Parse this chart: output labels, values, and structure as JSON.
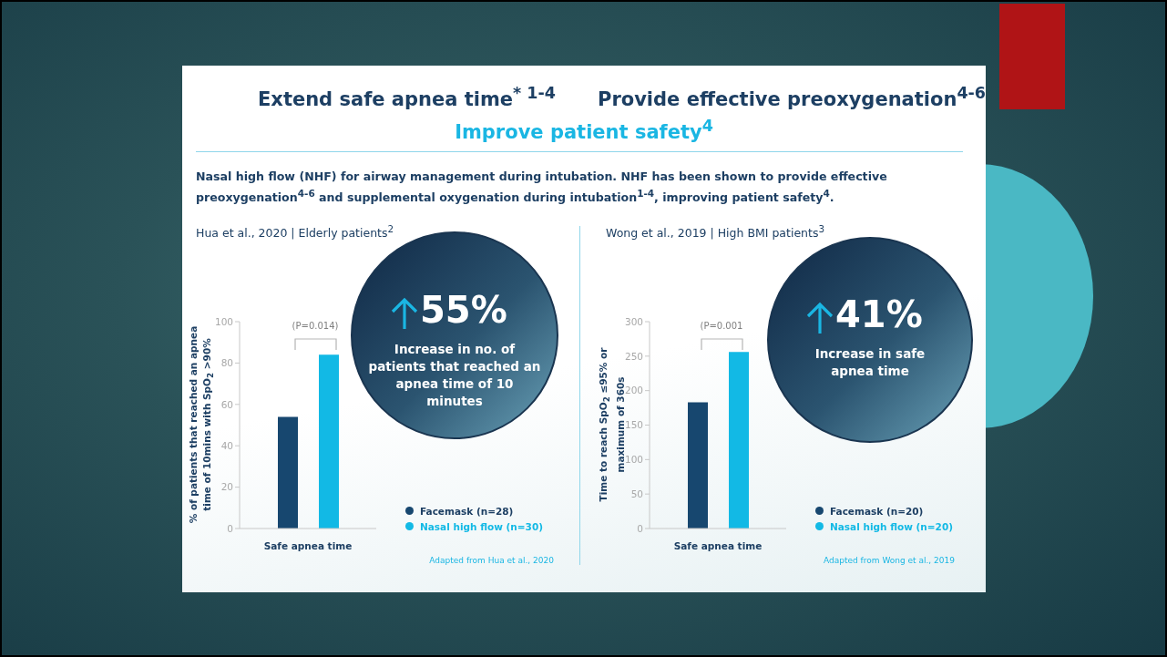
{
  "chart_data": [
    {
      "type": "bar",
      "title": "Extend safe apnea time$^{* 1-4}$",
      "ylabel": "% of patients that reached an apnea time of 10mins with SpO$_{2}$ >90%",
      "categories": [
        "Safe apnea time"
      ],
      "series": [
        {
          "name": "Facemask (n=28)",
          "color": "#17476f",
          "values": [
            54
          ]
        },
        {
          "name": "Nasal high flow (n=30)",
          "color": "#12b9e5",
          "values": [
            84
          ]
        }
      ],
      "ylim": [
        0,
        100
      ],
      "yticks": [
        0,
        20,
        40,
        60,
        80,
        100
      ],
      "grid": false,
      "legend": "right",
      "annotations": [
        "Improve patient safety$^{4}$",
        "Nasal high flow (NHF) for airway management during intubation. NHF has been shown to provide effective preoxygenation$^{4-6}$ and supplemental oxygenation during intubation$^{1-4}$, improving patient safety$^{4}$.",
        "Hua et al., 2020 | Elderly patients$^{2}$",
        "(P=0.014)",
        "55%",
        "Increase in no. of patients that reached an apnea time of 10 minutes",
        "Adapted from Hua et al., 2020"
      ]
    },
    {
      "type": "bar",
      "title": "Provide effective preoxygenation$^{4-6}$",
      "ylabel": "Time to reach SpO$_{2}$ ≤95% or maximum of 360s",
      "categories": [
        "Safe apnea time"
      ],
      "series": [
        {
          "name": "Facemask (n=20)",
          "color": "#17476f",
          "values": [
            183
          ]
        },
        {
          "name": "Nasal high flow (n=20)",
          "color": "#12b9e5",
          "values": [
            256
          ]
        }
      ],
      "ylim": [
        0,
        300
      ],
      "yticks": [
        0,
        50,
        100,
        150,
        200,
        250,
        300
      ],
      "grid": false,
      "legend": "right",
      "annotations": [
        "Wong et al., 2019 | High BMI patients$^{3}$",
        "(P=0.001",
        "41%",
        "Increase in safe apnea time",
        "Adapted from Wong et al., 2019"
      ]
    }
  ]
}
